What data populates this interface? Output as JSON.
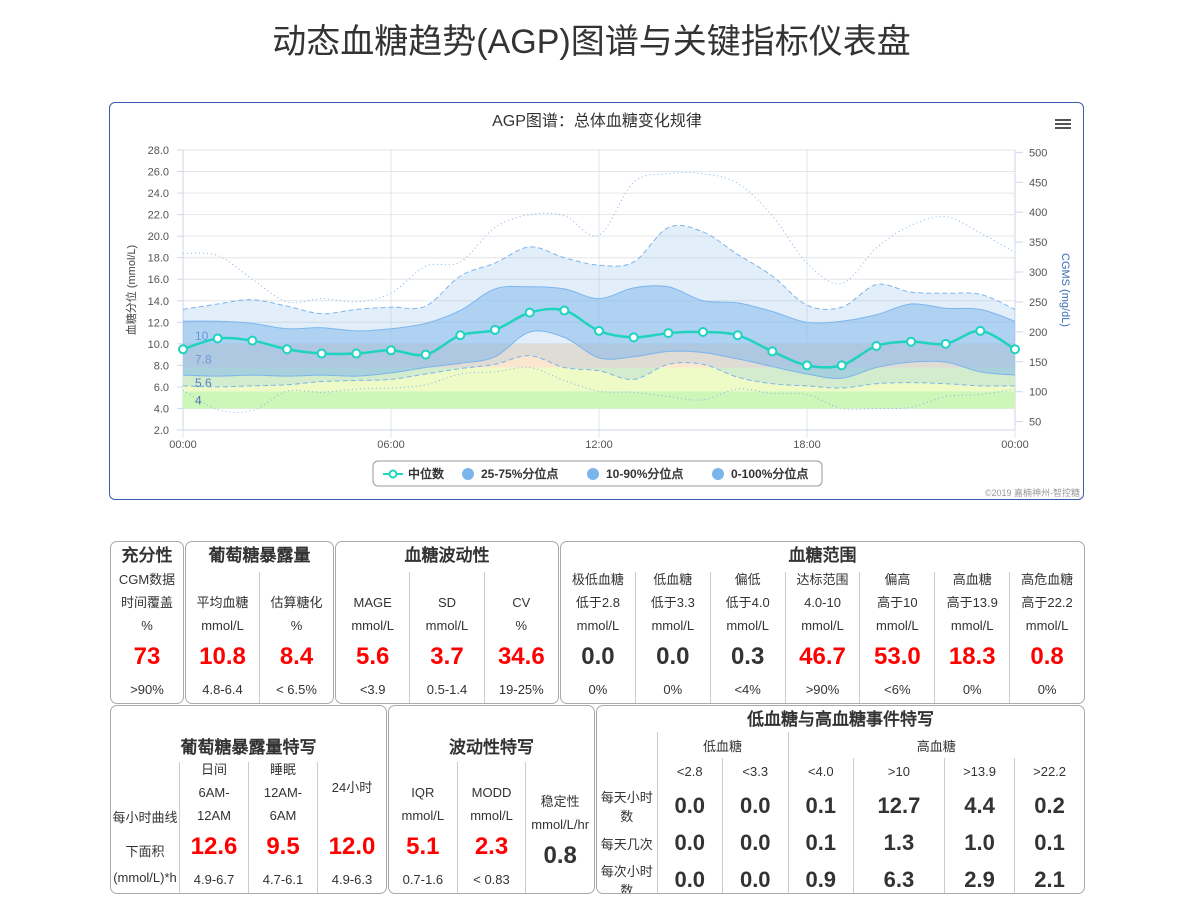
{
  "page_title": "动态血糖趋势(AGP)图谱与关键指标仪表盘",
  "chart_data": {
    "type": "area",
    "title": "AGP图谱：总体血糖变化规律",
    "ylabel": "血糖分位 (mmol/L)",
    "ylabel_right": "CGMS (mg/dL)",
    "ylim": [
      2,
      28
    ],
    "yticks": [
      "2.0",
      "4.0",
      "6.0",
      "8.0",
      "10.0",
      "12.0",
      "14.0",
      "16.0",
      "18.0",
      "20.0",
      "22.0",
      "24.0",
      "26.0",
      "28.0"
    ],
    "ylim_right": [
      36,
      504
    ],
    "yticks_right": [
      "50",
      "100",
      "150",
      "200",
      "250",
      "300",
      "350",
      "400",
      "450",
      "500"
    ],
    "xticks": [
      "00:00",
      "06:00",
      "12:00",
      "18:00",
      "00:00"
    ],
    "x_hours": [
      0,
      1,
      2,
      3,
      4,
      5,
      6,
      7,
      8,
      9,
      10,
      11,
      12,
      13,
      14,
      15,
      16,
      17,
      18,
      19,
      20,
      21,
      22,
      23,
      24
    ],
    "target_bands": [
      {
        "from": 4,
        "to": 5.6,
        "label": "4",
        "color": "#ccf7b8"
      },
      {
        "from": 5.6,
        "to": 7.8,
        "label": "5.6",
        "color": "#eefbc6"
      },
      {
        "from": 7.8,
        "to": 10,
        "label": "7.8",
        "color": "#fbe6cf"
      }
    ],
    "band_label_10": "10",
    "series": [
      {
        "name": "中位数",
        "color": "#1fd3c0",
        "values": [
          9.5,
          10.5,
          10.3,
          9.5,
          9.1,
          9.1,
          9.4,
          9.0,
          10.8,
          11.3,
          12.9,
          13.1,
          11.2,
          10.6,
          11.0,
          11.1,
          10.8,
          9.3,
          8.0,
          8.0,
          9.8,
          10.2,
          10.0,
          11.2,
          9.5
        ]
      },
      {
        "name": "25-75%分位点",
        "color": "#7cb5ec",
        "low": [
          7.1,
          7.0,
          7.1,
          7.0,
          7.1,
          7.0,
          7.3,
          7.8,
          8.2,
          8.8,
          11.1,
          10.6,
          8.7,
          8.8,
          9.3,
          9.2,
          8.6,
          7.9,
          7.2,
          6.8,
          7.8,
          8.3,
          8.3,
          7.4,
          7.1
        ],
        "high": [
          12.1,
          12.1,
          11.9,
          11.4,
          11.5,
          11.2,
          11.4,
          11.9,
          13.1,
          15.1,
          15.3,
          15.1,
          14.2,
          15.2,
          15.3,
          14.0,
          13.8,
          13.0,
          12.0,
          12.1,
          12.7,
          13.7,
          13.3,
          13.2,
          12.1
        ]
      },
      {
        "name": "10-90%分位点",
        "color": "#7cb5ec",
        "low": [
          6.1,
          6.0,
          6.1,
          6.2,
          6.5,
          6.6,
          6.7,
          7.2,
          7.7,
          8.1,
          8.9,
          7.8,
          7.5,
          6.7,
          8.1,
          8.1,
          6.9,
          6.3,
          6.1,
          5.9,
          6.3,
          6.4,
          6.3,
          6.1,
          6.1
        ],
        "high": [
          13.2,
          13.7,
          14.1,
          13.5,
          12.8,
          13.2,
          13.4,
          13.5,
          16.3,
          17.5,
          19.0,
          18.0,
          17.3,
          17.6,
          20.8,
          20.4,
          18.3,
          16.3,
          13.6,
          13.4,
          15.5,
          14.8,
          14.7,
          14.6,
          13.2
        ]
      },
      {
        "name": "0-100%分位点",
        "color": "#7cb5ec",
        "low": [
          5.7,
          3.9,
          3.8,
          5.6,
          5.5,
          5.8,
          5.9,
          6.2,
          7.2,
          7.4,
          7.8,
          6.6,
          5.6,
          5.5,
          5.1,
          4.8,
          5.8,
          5.4,
          5.3,
          4.0,
          4.0,
          4.1,
          5.1,
          5.3,
          5.8
        ],
        "high": [
          18.4,
          18.2,
          16.0,
          13.9,
          14.2,
          13.9,
          14.7,
          17.2,
          17.6,
          20.8,
          22.0,
          21.9,
          20.1,
          25.0,
          25.8,
          25.8,
          24.9,
          21.9,
          17.5,
          15.6,
          18.9,
          21.0,
          21.8,
          20.3,
          18.5
        ]
      }
    ],
    "legend_position": "bottom-center",
    "credit": "©2019 嘉楠神州-智控糖"
  },
  "row1": [
    {
      "title": "充分性",
      "cols": [
        {
          "head": [
            "CGM数据",
            "时间覆盖",
            "%"
          ],
          "value": "73",
          "red": true,
          "ref": ">90%"
        }
      ]
    },
    {
      "title": "葡萄糖暴露量",
      "cols": [
        {
          "head": [
            "平均血糖",
            "mmol/L"
          ],
          "value": "10.8",
          "red": true,
          "ref": "4.8-6.4"
        },
        {
          "head": [
            "估算糖化",
            "%"
          ],
          "value": "8.4",
          "red": true,
          "ref": "< 6.5%"
        }
      ]
    },
    {
      "title": "血糖波动性",
      "cols": [
        {
          "head": [
            "MAGE",
            "mmol/L"
          ],
          "value": "5.6",
          "red": true,
          "ref": "<3.9"
        },
        {
          "head": [
            "SD",
            "mmol/L"
          ],
          "value": "3.7",
          "red": true,
          "ref": "0.5-1.4"
        },
        {
          "head": [
            "CV",
            "%"
          ],
          "value": "34.6",
          "red": true,
          "ref": "19-25%"
        }
      ]
    },
    {
      "title": "血糖范围",
      "cols": [
        {
          "head": [
            "极低血糖",
            "低于2.8",
            "mmol/L"
          ],
          "value": "0.0",
          "red": false,
          "ref": "0%"
        },
        {
          "head": [
            "低血糖",
            "低于3.3",
            "mmol/L"
          ],
          "value": "0.0",
          "red": false,
          "ref": "0%"
        },
        {
          "head": [
            "偏低",
            "低于4.0",
            "mmol/L"
          ],
          "value": "0.3",
          "red": false,
          "ref": "<4%"
        },
        {
          "head": [
            "达标范围",
            "4.0-10",
            "mmol/L"
          ],
          "value": "46.7",
          "red": true,
          "ref": ">90%"
        },
        {
          "head": [
            "偏高",
            "高于10",
            "mmol/L"
          ],
          "value": "53.0",
          "red": true,
          "ref": "<6%"
        },
        {
          "head": [
            "高血糖",
            "高于13.9",
            "mmol/L"
          ],
          "value": "18.3",
          "red": true,
          "ref": "0%"
        },
        {
          "head": [
            "高危血糖",
            "高于22.2",
            "mmol/L"
          ],
          "value": "0.8",
          "red": true,
          "ref": "0%"
        }
      ]
    }
  ],
  "row2": [
    {
      "title": "葡萄糖暴露量特写",
      "cols": [
        {
          "head": [
            "每小时曲线",
            "下面积"
          ],
          "value": "",
          "red": false,
          "ref": "(mmol/L)*h",
          "rowlabel": true
        },
        {
          "head": [
            "日间",
            "6AM-",
            "12AM"
          ],
          "value": "12.6",
          "red": true,
          "ref": "4.9-6.7"
        },
        {
          "head": [
            "睡眠",
            "12AM-",
            "6AM"
          ],
          "value": "9.5",
          "red": true,
          "ref": "4.7-6.1"
        },
        {
          "head": [
            "24小时",
            "",
            ""
          ],
          "value": "12.0",
          "red": true,
          "ref": "4.9-6.3"
        }
      ]
    },
    {
      "title": "波动性特写",
      "cols": [
        {
          "head": [
            "IQR",
            "mmol/L"
          ],
          "value": "5.1",
          "red": true,
          "ref": "0.7-1.6"
        },
        {
          "head": [
            "MODD",
            "mmol/L"
          ],
          "value": "2.3",
          "red": true,
          "ref": "< 0.83"
        },
        {
          "head": [
            "稳定性",
            "mmol/L/hr"
          ],
          "value": "0.8",
          "red": false,
          "ref": ""
        }
      ]
    }
  ],
  "events": {
    "title": "低血糖与高血糖事件特写",
    "groups": [
      "低血糖",
      "高血糖"
    ],
    "thresholds": [
      "<2.8",
      "<3.3",
      "<4.0",
      ">10",
      ">13.9",
      ">22.2"
    ],
    "rows": [
      {
        "label": "每天小时数",
        "values": [
          "0.0",
          "0.0",
          "0.1",
          "12.7",
          "4.4",
          "0.2"
        ]
      },
      {
        "label": "每天几次",
        "values": [
          "0.0",
          "0.0",
          "0.1",
          "1.3",
          "1.0",
          "0.1"
        ]
      },
      {
        "label": "每次小时数",
        "values": [
          "0.0",
          "0.0",
          "0.9",
          "6.3",
          "2.9",
          "2.1"
        ]
      }
    ]
  }
}
